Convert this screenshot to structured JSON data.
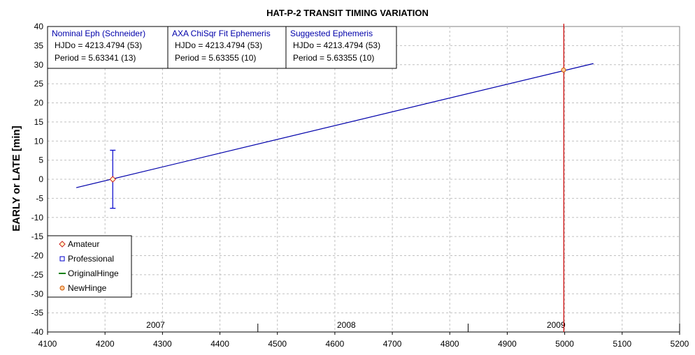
{
  "chart_data": {
    "type": "scatter",
    "title": "HAT-P-2 TRANSIT TIMING VARIATION",
    "xlabel": "",
    "ylabel": "EARLY or LATE [min]",
    "xlim": [
      4100,
      5200
    ],
    "ylim": [
      -40,
      40
    ],
    "x_ticks": [
      4100,
      4200,
      4300,
      4400,
      4500,
      4600,
      4700,
      4800,
      4900,
      5000,
      5100,
      5200
    ],
    "y_ticks": [
      -40,
      -35,
      -30,
      -25,
      -20,
      -15,
      -10,
      -5,
      0,
      5,
      10,
      15,
      20,
      25,
      30,
      35,
      40
    ],
    "grid": true,
    "year_axis": [
      {
        "label": "2007",
        "boundary": 4466
      },
      {
        "label": "2008",
        "boundary": 4832
      },
      {
        "label": "2009",
        "boundary": null
      }
    ],
    "year_label_positions": [
      4288,
      4620,
      4985
    ],
    "year_axis_start": 4100,
    "year_axis_end": 5200,
    "series": [
      {
        "name": "Amateur",
        "marker": "diamond",
        "color": "#cc2222",
        "points": [
          {
            "x": 4213.5,
            "y": 0.0,
            "err": 7.6
          }
        ]
      },
      {
        "name": "Professional",
        "marker": "square",
        "color": "#0000cc",
        "points": []
      },
      {
        "name": "OriginalHinge",
        "marker": "line",
        "color": "#008000",
        "points": []
      },
      {
        "name": "NewHinge",
        "marker": "circle",
        "color": "#cc5500",
        "points": [
          {
            "x": 4998.0,
            "y": 28.6
          }
        ]
      }
    ],
    "fit_line": {
      "color": "#0000aa",
      "x": [
        4150,
        5050
      ],
      "y": [
        -2.2,
        30.3
      ]
    },
    "vertical_line": {
      "x": 4998.5,
      "color": "#cc0000"
    },
    "legend": {
      "placement": "bottom-left"
    },
    "ephemeris_boxes": [
      {
        "title": "Nominal Eph (Schneider)",
        "line1": "HJDo = 4213.4794 (53)",
        "line2": "Period = 5.63341 (13)"
      },
      {
        "title": "AXA ChiSqr Fit Ephemeris",
        "line1": "HJDo = 4213.4794 (53)",
        "line2": "Period = 5.63355 (10)"
      },
      {
        "title": "Suggested Ephemeris",
        "line1": "HJDo = 4213.4794 (53)",
        "line2": "Period = 5.63355 (10)"
      }
    ],
    "colors": {
      "title_box": "#0000aa",
      "grid": "#c0c0c0",
      "axis": "#000000"
    }
  }
}
